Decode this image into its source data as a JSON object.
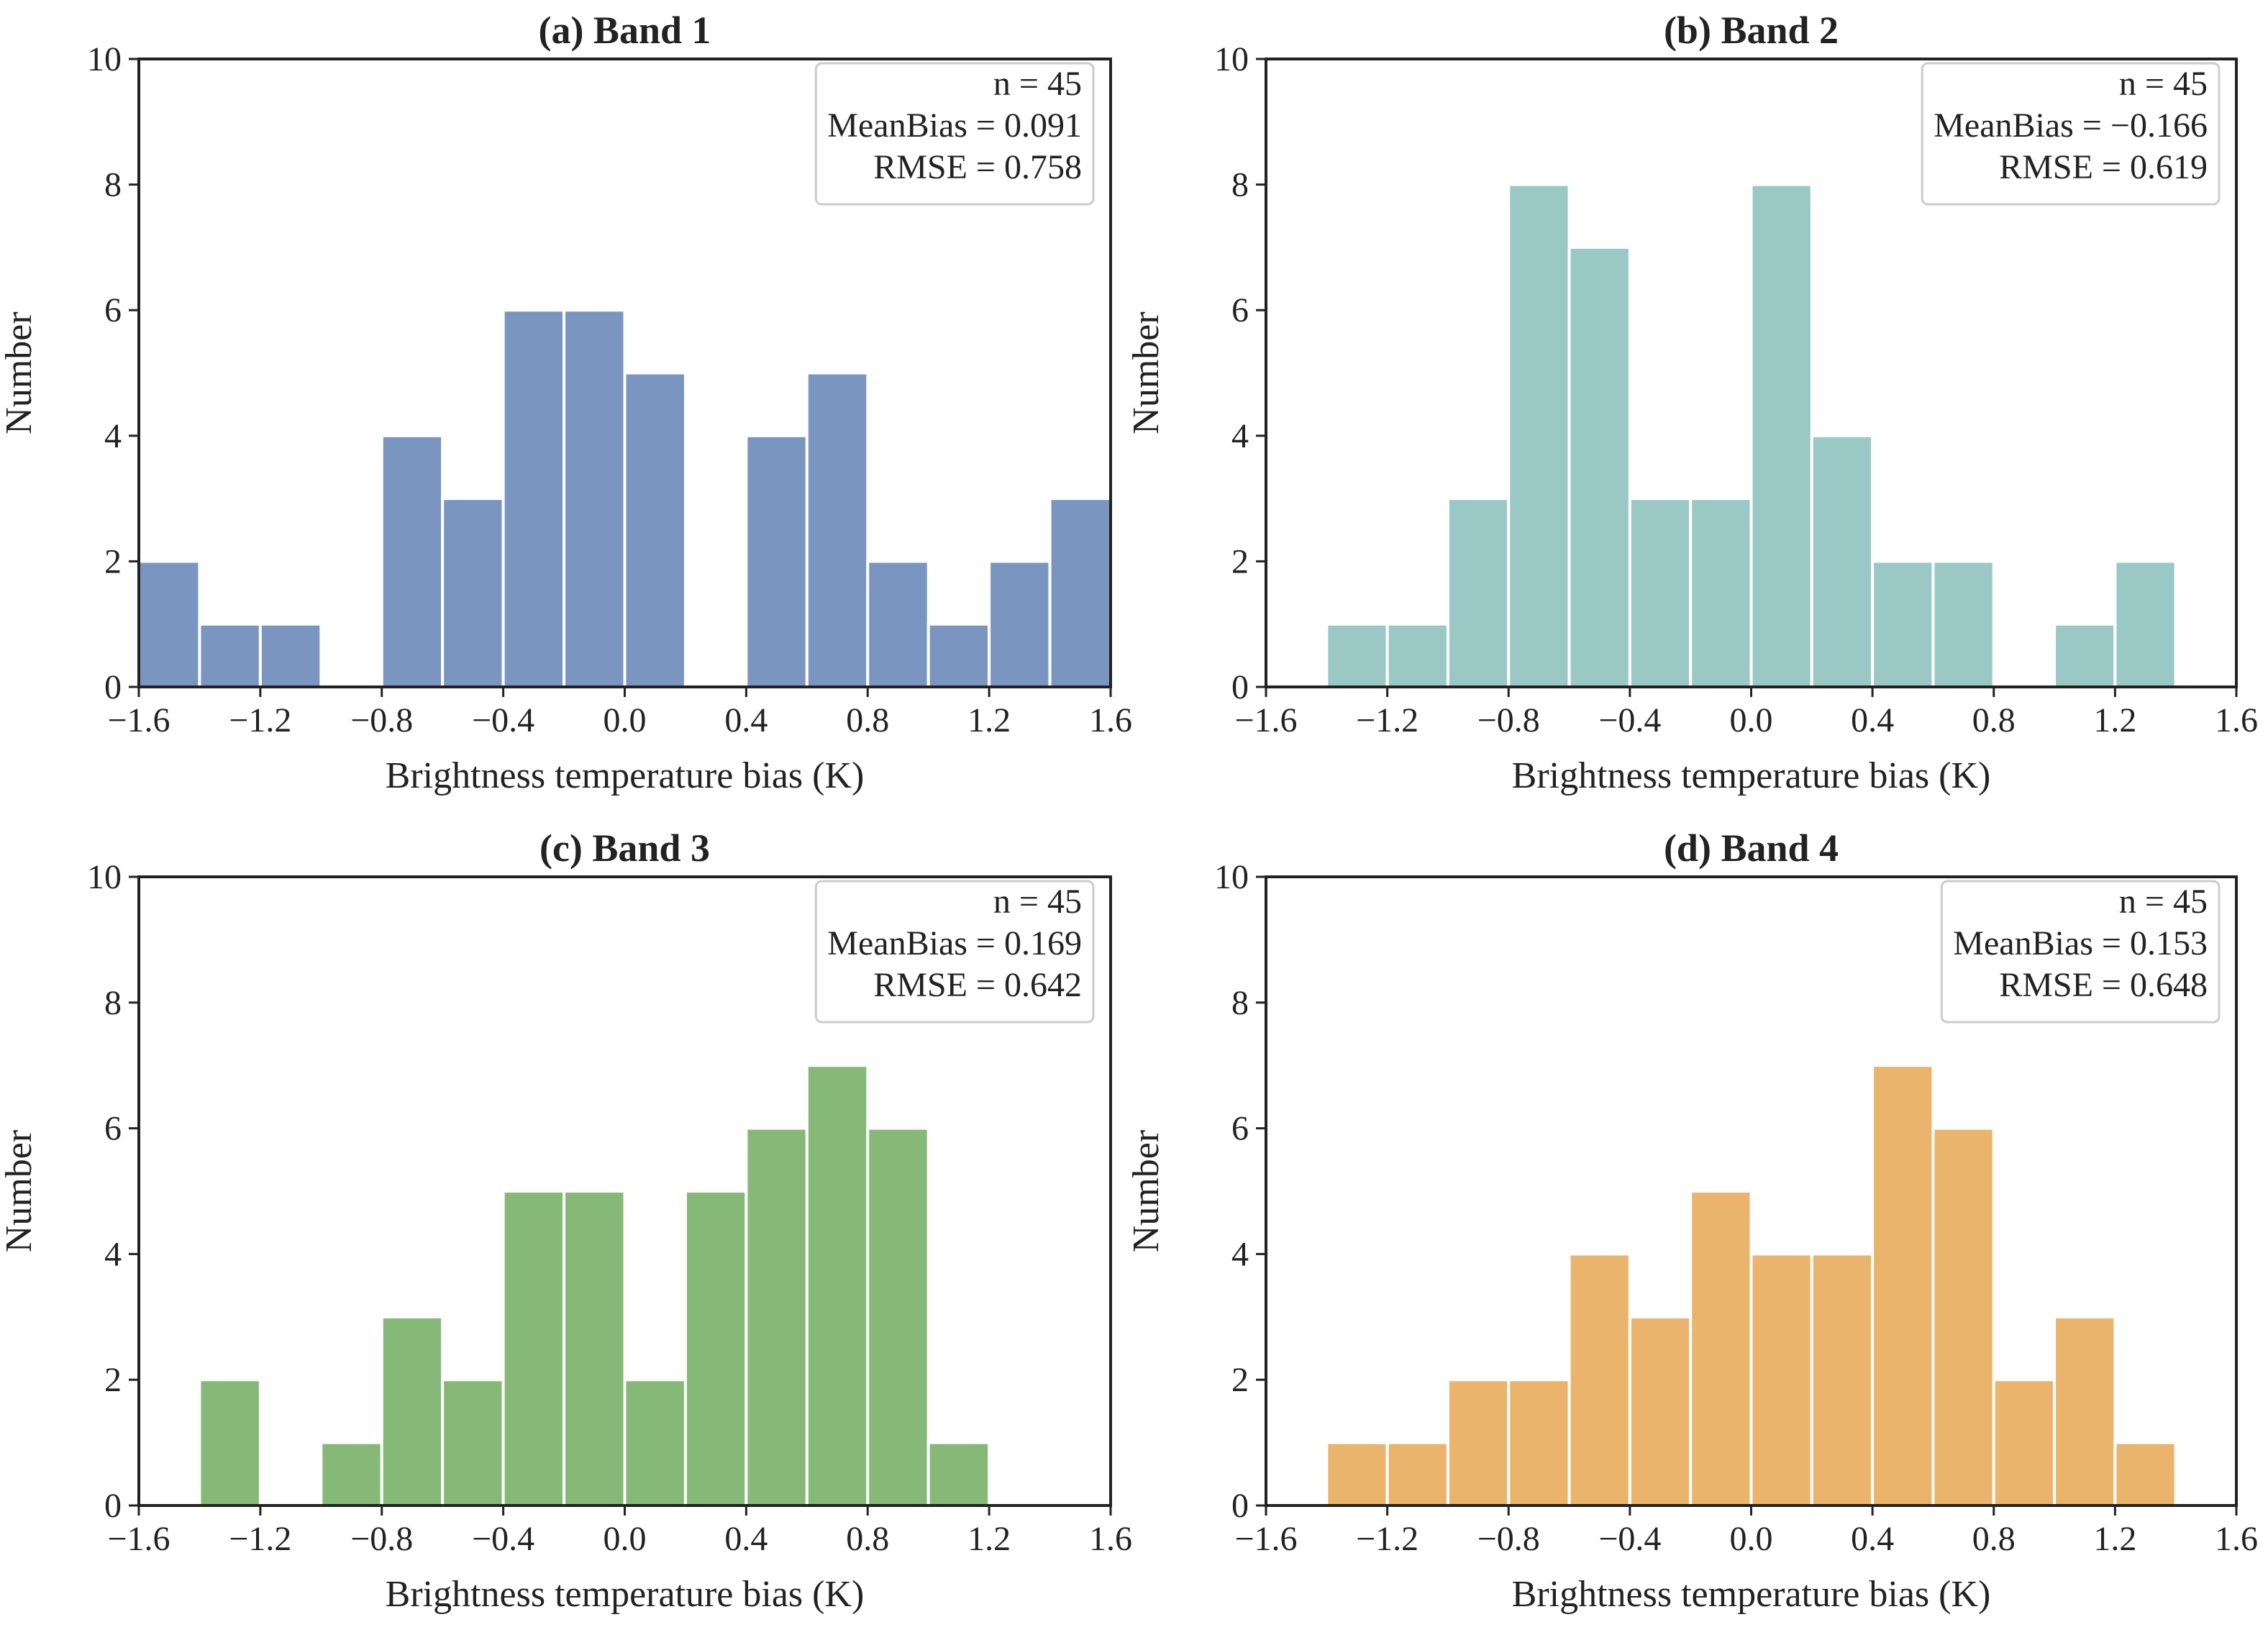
{
  "chart_data": [
    {
      "type": "bar",
      "title": "(a) Band 1",
      "color": "#7A96C0",
      "bin_edges_start": -1.6,
      "bin_width": 0.2,
      "values": [
        2,
        1,
        1,
        0,
        4,
        3,
        6,
        6,
        5,
        0,
        4,
        5,
        2,
        1,
        2,
        3
      ],
      "xlabel": "Brightness temperature bias (K)",
      "ylabel": "Number",
      "xlim": [
        -1.6,
        1.6
      ],
      "ylim": [
        0,
        10
      ],
      "xticks": [
        "−1.6",
        "−1.2",
        "−0.8",
        "−0.4",
        "0.0",
        "0.4",
        "0.8",
        "1.2",
        "1.6"
      ],
      "yticks": [
        "0",
        "2",
        "4",
        "6",
        "8",
        "10"
      ],
      "stats": [
        "n = 45",
        "MeanBias = 0.091",
        "RMSE = 0.758"
      ],
      "legend_position": "top-right"
    },
    {
      "type": "bar",
      "title": "(b) Band 2",
      "color": "#9AC9C5",
      "bin_edges_start": -1.6,
      "bin_width": 0.2,
      "values": [
        0,
        1,
        1,
        3,
        8,
        7,
        3,
        3,
        8,
        4,
        2,
        2,
        0,
        1,
        2,
        0
      ],
      "xlabel": "Brightness temperature bias (K)",
      "ylabel": "Number",
      "xlim": [
        -1.6,
        1.6
      ],
      "ylim": [
        0,
        10
      ],
      "xticks": [
        "−1.6",
        "−1.2",
        "−0.8",
        "−0.4",
        "0.0",
        "0.4",
        "0.8",
        "1.2",
        "1.6"
      ],
      "yticks": [
        "0",
        "2",
        "4",
        "6",
        "8",
        "10"
      ],
      "stats": [
        "n = 45",
        "MeanBias = −0.166",
        "RMSE = 0.619"
      ],
      "legend_position": "top-right"
    },
    {
      "type": "bar",
      "title": "(c) Band 3",
      "color": "#86B977",
      "bin_edges_start": -1.6,
      "bin_width": 0.2,
      "values": [
        0,
        2,
        0,
        1,
        3,
        2,
        5,
        5,
        2,
        5,
        6,
        7,
        6,
        1,
        0,
        0
      ],
      "xlabel": "Brightness temperature bias (K)",
      "ylabel": "Number",
      "xlim": [
        -1.6,
        1.6
      ],
      "ylim": [
        0,
        10
      ],
      "xticks": [
        "−1.6",
        "−1.2",
        "−0.8",
        "−0.4",
        "0.0",
        "0.4",
        "0.8",
        "1.2",
        "1.6"
      ],
      "yticks": [
        "0",
        "2",
        "4",
        "6",
        "8",
        "10"
      ],
      "stats": [
        "n = 45",
        "MeanBias = 0.169",
        "RMSE = 0.642"
      ],
      "legend_position": "top-right"
    },
    {
      "type": "bar",
      "title": "(d) Band 4",
      "color": "#EBB46C",
      "bin_edges_start": -1.6,
      "bin_width": 0.2,
      "values": [
        0,
        1,
        1,
        2,
        2,
        4,
        3,
        5,
        4,
        4,
        7,
        6,
        2,
        3,
        1,
        0
      ],
      "xlabel": "Brightness temperature bias (K)",
      "ylabel": "Number",
      "xlim": [
        -1.6,
        1.6
      ],
      "ylim": [
        0,
        10
      ],
      "xticks": [
        "−1.6",
        "−1.2",
        "−0.8",
        "−0.4",
        "0.0",
        "0.4",
        "0.8",
        "1.2",
        "1.6"
      ],
      "yticks": [
        "0",
        "2",
        "4",
        "6",
        "8",
        "10"
      ],
      "stats": [
        "n = 45",
        "MeanBias = 0.153",
        "RMSE = 0.648"
      ],
      "legend_position": "top-right"
    }
  ]
}
